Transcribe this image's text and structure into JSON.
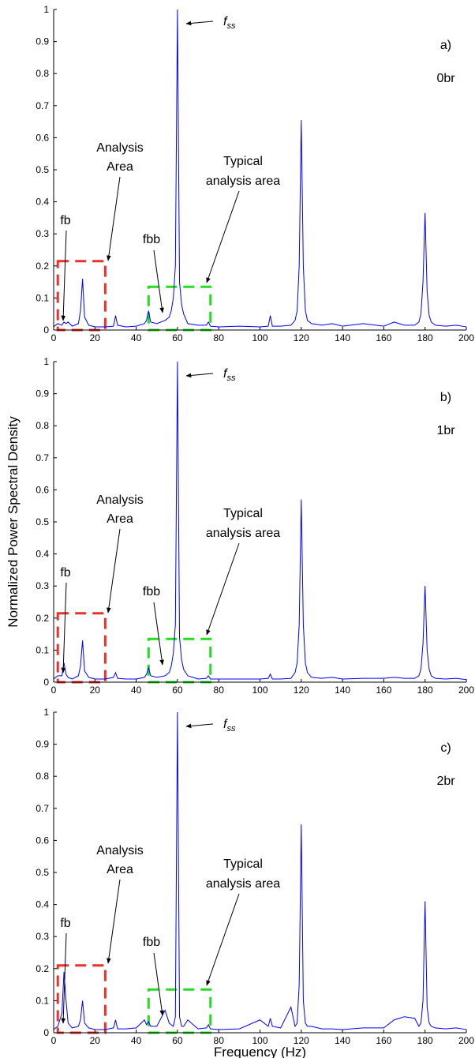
{
  "chart_data": [
    {
      "type": "line",
      "panel_label": "a)",
      "condition": "0br",
      "annotations": {
        "fss": {
          "text": "f",
          "subscript": "ss"
        },
        "fb": "fb",
        "analysis_area": [
          "Analysis",
          "Area"
        ],
        "fbb": "fbb",
        "typical_area": [
          "Typical",
          "analysis area"
        ]
      },
      "regions": [
        {
          "x": [
            2,
            25
          ],
          "y": [
            0,
            0.215
          ],
          "color": "#e8322b"
        },
        {
          "x": [
            46,
            76
          ],
          "y": [
            0,
            0.135
          ],
          "color": "#22dd22"
        }
      ],
      "xlim": [
        0,
        200
      ],
      "ylim": [
        0,
        1
      ],
      "xticks": [
        0,
        20,
        40,
        60,
        80,
        100,
        120,
        140,
        160,
        180,
        200
      ],
      "yticks": [
        0,
        0.1,
        0.2,
        0.3,
        0.4,
        0.5,
        0.6,
        0.7,
        0.8,
        0.9,
        1
      ],
      "color": "#0000ff",
      "x": [
        0,
        2,
        4,
        5,
        6,
        7,
        9,
        12,
        13,
        14,
        15,
        17,
        20,
        25,
        29,
        30,
        31,
        35,
        40,
        44,
        45,
        46,
        47,
        50,
        54,
        56,
        57,
        58,
        59,
        60,
        61,
        62,
        63,
        65,
        70,
        74,
        75,
        76,
        80,
        90,
        100,
        104,
        105,
        106,
        110,
        115,
        117,
        118,
        119,
        120,
        121,
        122,
        123,
        125,
        130,
        135,
        140,
        150,
        160,
        165,
        170,
        175,
        177,
        178,
        179,
        180,
        181,
        182,
        183,
        185,
        190,
        195,
        200
      ],
      "values": [
        0.01,
        0.02,
        0.015,
        0.025,
        0.02,
        0.025,
        0.012,
        0.02,
        0.06,
        0.16,
        0.04,
        0.015,
        0.01,
        0.01,
        0.012,
        0.045,
        0.015,
        0.01,
        0.012,
        0.02,
        0.03,
        0.06,
        0.025,
        0.02,
        0.03,
        0.04,
        0.06,
        0.1,
        0.2,
        1,
        0.15,
        0.08,
        0.05,
        0.02,
        0.015,
        0.015,
        0.025,
        0.012,
        0.01,
        0.012,
        0.01,
        0.012,
        0.045,
        0.012,
        0.012,
        0.015,
        0.03,
        0.06,
        0.2,
        0.655,
        0.2,
        0.06,
        0.03,
        0.02,
        0.015,
        0.02,
        0.012,
        0.02,
        0.012,
        0.025,
        0.015,
        0.015,
        0.025,
        0.05,
        0.15,
        0.365,
        0.12,
        0.045,
        0.025,
        0.015,
        0.012,
        0.015,
        0.01
      ]
    },
    {
      "type": "line",
      "panel_label": "b)",
      "condition": "1br",
      "ylabel": "Normalized Power Spectral Density",
      "annotations": {
        "fss": {
          "text": "f",
          "subscript": "ss"
        },
        "fb": "fb",
        "analysis_area": [
          "Analysis",
          "Area"
        ],
        "fbb": "fbb",
        "typical_area": [
          "Typical",
          "analysis area"
        ]
      },
      "regions": [
        {
          "x": [
            2,
            25
          ],
          "y": [
            0,
            0.215
          ],
          "color": "#e8322b"
        },
        {
          "x": [
            46,
            76
          ],
          "y": [
            0,
            0.135
          ],
          "color": "#22dd22"
        }
      ],
      "xlim": [
        0,
        200
      ],
      "ylim": [
        0,
        1
      ],
      "xticks": [
        0,
        20,
        40,
        60,
        80,
        100,
        120,
        140,
        160,
        180,
        200
      ],
      "yticks": [
        0,
        0.1,
        0.2,
        0.3,
        0.4,
        0.5,
        0.6,
        0.7,
        0.8,
        0.9,
        1
      ],
      "color": "#0000ff",
      "x": [
        0,
        2,
        4,
        5,
        6,
        7,
        9,
        12,
        13,
        14,
        15,
        17,
        20,
        25,
        29,
        30,
        31,
        35,
        40,
        44,
        45,
        46,
        47,
        50,
        54,
        56,
        57,
        58,
        59,
        60,
        61,
        62,
        63,
        65,
        70,
        74,
        75,
        76,
        80,
        90,
        100,
        104,
        105,
        106,
        110,
        115,
        117,
        118,
        119,
        120,
        121,
        122,
        123,
        125,
        130,
        135,
        140,
        150,
        160,
        165,
        170,
        175,
        177,
        178,
        179,
        180,
        181,
        182,
        183,
        185,
        190,
        195,
        200
      ],
      "values": [
        0.01,
        0.02,
        0.02,
        0.06,
        0.025,
        0.015,
        0.01,
        0.02,
        0.05,
        0.13,
        0.035,
        0.015,
        0.01,
        0.01,
        0.015,
        0.03,
        0.012,
        0.01,
        0.01,
        0.015,
        0.025,
        0.045,
        0.02,
        0.015,
        0.02,
        0.03,
        0.05,
        0.09,
        0.18,
        1,
        0.14,
        0.07,
        0.04,
        0.02,
        0.01,
        0.012,
        0.02,
        0.01,
        0.01,
        0.01,
        0.01,
        0.012,
        0.025,
        0.01,
        0.01,
        0.012,
        0.03,
        0.06,
        0.18,
        0.57,
        0.18,
        0.06,
        0.03,
        0.015,
        0.012,
        0.015,
        0.01,
        0.012,
        0.012,
        0.015,
        0.012,
        0.012,
        0.02,
        0.04,
        0.12,
        0.3,
        0.1,
        0.04,
        0.02,
        0.012,
        0.01,
        0.012,
        0.008
      ]
    },
    {
      "type": "line",
      "panel_label": "c)",
      "condition": "2br",
      "xlabel": "Frequency (Hz)",
      "annotations": {
        "fss": {
          "text": "f",
          "subscript": "ss"
        },
        "fb": "fb",
        "analysis_area": [
          "Analysis",
          "Area"
        ],
        "fbb": "fbb",
        "typical_area": [
          "Typical",
          "analysis area"
        ]
      },
      "regions": [
        {
          "x": [
            2,
            25
          ],
          "y": [
            0,
            0.21
          ],
          "color": "#e8322b"
        },
        {
          "x": [
            46,
            76
          ],
          "y": [
            0,
            0.135
          ],
          "color": "#22dd22"
        }
      ],
      "xlim": [
        0,
        200
      ],
      "ylim": [
        0,
        1
      ],
      "xticks": [
        0,
        20,
        40,
        60,
        80,
        100,
        120,
        140,
        160,
        180,
        200
      ],
      "yticks": [
        0,
        0.1,
        0.2,
        0.3,
        0.4,
        0.5,
        0.6,
        0.7,
        0.8,
        0.9,
        1
      ],
      "color": "#0000ff",
      "x": [
        0,
        2,
        4,
        5,
        6,
        7,
        9,
        12,
        13,
        14,
        15,
        17,
        20,
        25,
        29,
        30,
        31,
        35,
        40,
        44,
        45,
        46,
        47,
        50,
        54,
        56,
        57,
        58,
        59,
        60,
        61,
        62,
        63,
        65,
        70,
        74,
        75,
        76,
        80,
        90,
        100,
        104,
        105,
        106,
        110,
        115,
        117,
        118,
        119,
        120,
        121,
        122,
        123,
        125,
        130,
        135,
        140,
        150,
        160,
        165,
        170,
        175,
        177,
        178,
        179,
        180,
        181,
        182,
        183,
        185,
        190,
        195,
        200
      ],
      "values": [
        0.01,
        0.02,
        0.06,
        0.19,
        0.1,
        0.03,
        0.015,
        0.02,
        0.04,
        0.1,
        0.03,
        0.015,
        0.01,
        0.01,
        0.015,
        0.04,
        0.012,
        0.012,
        0.015,
        0.04,
        0.025,
        0.035,
        0.02,
        0.02,
        0.07,
        0.03,
        0.025,
        0.02,
        0.05,
        1,
        0.05,
        0.02,
        0.02,
        0.04,
        0.012,
        0.015,
        0.025,
        0.012,
        0.01,
        0.012,
        0.04,
        0.02,
        0.045,
        0.02,
        0.015,
        0.08,
        0.02,
        0.03,
        0.15,
        0.65,
        0.1,
        0.03,
        0.02,
        0.02,
        0.012,
        0.012,
        0.01,
        0.015,
        0.015,
        0.04,
        0.05,
        0.045,
        0.02,
        0.03,
        0.1,
        0.41,
        0.08,
        0.03,
        0.02,
        0.015,
        0.012,
        0.015,
        0.01
      ]
    }
  ]
}
